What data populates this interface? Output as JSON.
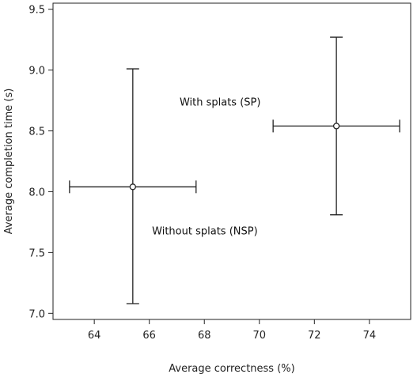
{
  "chart_data": {
    "type": "scatter",
    "title": "",
    "xlabel": "Average correctness (%)",
    "ylabel": "Average completion time (s)",
    "xlim": [
      62.5,
      75.5
    ],
    "ylim": [
      6.95,
      9.55
    ],
    "xticks": [
      64,
      66,
      68,
      70,
      72,
      74
    ],
    "yticks": [
      7.0,
      7.5,
      8.0,
      8.5,
      9.0,
      9.5
    ],
    "ytick_labels": [
      "7.0",
      "7.5",
      "8.0",
      "8.5",
      "9.0",
      "9.5"
    ],
    "grid": false,
    "series": [
      {
        "name": "Without splats (NSP)",
        "x": 65.4,
        "y": 8.04,
        "x_err": [
          63.1,
          67.7
        ],
        "y_err": [
          7.08,
          9.01
        ]
      },
      {
        "name": "With splats (SP)",
        "x": 72.8,
        "y": 8.54,
        "x_err": [
          70.5,
          75.1
        ],
        "y_err": [
          7.81,
          9.27
        ]
      }
    ]
  }
}
